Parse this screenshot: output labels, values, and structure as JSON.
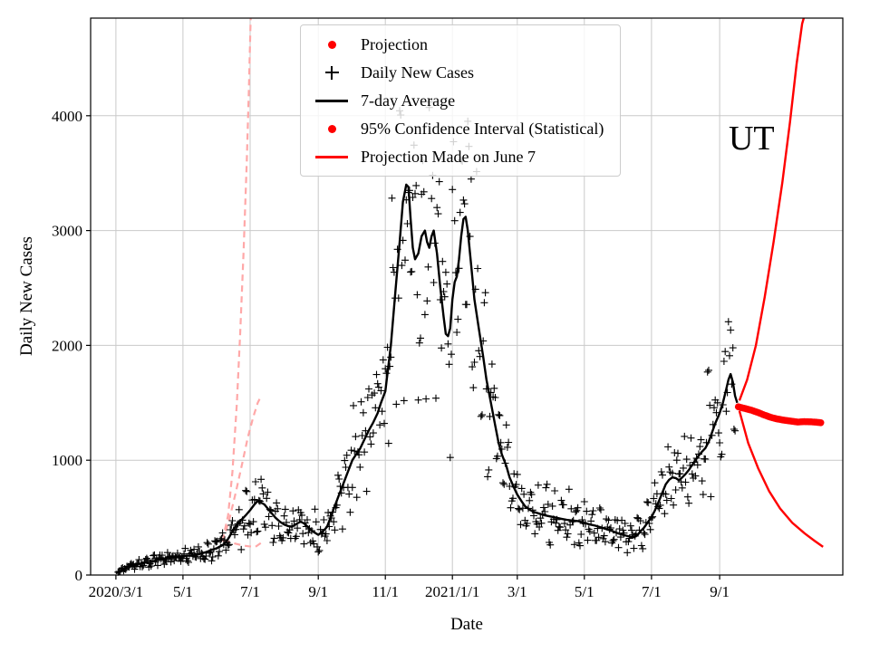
{
  "chart_data": {
    "type": "line+scatter",
    "x_unit": "days since 2020-03-01",
    "xlim": [
      -23,
      661
    ],
    "ylim": [
      0,
      4850
    ],
    "xlabel": "Date",
    "ylabel": "Daily New Cases",
    "grid": true,
    "xticks": [
      {
        "day": 0,
        "label": "2020/3/1"
      },
      {
        "day": 61,
        "label": "5/1"
      },
      {
        "day": 122,
        "label": "7/1"
      },
      {
        "day": 184,
        "label": "9/1"
      },
      {
        "day": 245,
        "label": "11/1"
      },
      {
        "day": 306,
        "label": "2021/1/1"
      },
      {
        "day": 365,
        "label": "3/1"
      },
      {
        "day": 426,
        "label": "5/1"
      },
      {
        "day": 487,
        "label": "7/1"
      },
      {
        "day": 549,
        "label": "9/1"
      }
    ],
    "yticks": [
      0,
      1000,
      2000,
      3000,
      4000
    ],
    "colors": {
      "cases": "#000000",
      "average": "#000000",
      "projection": "#ff0000",
      "past_projection": "#ffa8a8",
      "grid": "#c9c9c9"
    },
    "legend": {
      "position": "upper left",
      "items": [
        {
          "label": "Projection",
          "marker": "dot",
          "color": "#ff0000"
        },
        {
          "label": "Daily New Cases",
          "marker": "plus",
          "color": "#000000"
        },
        {
          "label": "7-day Average",
          "marker": "line",
          "color": "#000000"
        },
        {
          "label": "95% Confidence Interval (Statistical)",
          "marker": "dot",
          "color": "#ff0000"
        },
        {
          "label": "Projection Made on June 7",
          "marker": "line",
          "color": "#ff0000"
        }
      ]
    },
    "annotation": {
      "text": "UT",
      "day": 578,
      "value": 3800
    },
    "average": {
      "name": "7-day Average",
      "points": [
        [
          0,
          15
        ],
        [
          5,
          40
        ],
        [
          10,
          70
        ],
        [
          15,
          85
        ],
        [
          20,
          95
        ],
        [
          25,
          105
        ],
        [
          31,
          115
        ],
        [
          38,
          130
        ],
        [
          45,
          145
        ],
        [
          52,
          155
        ],
        [
          61,
          165
        ],
        [
          68,
          170
        ],
        [
          75,
          180
        ],
        [
          82,
          200
        ],
        [
          92,
          235
        ],
        [
          97,
          260
        ],
        [
          100,
          285
        ],
        [
          103,
          330
        ],
        [
          107,
          400
        ],
        [
          111,
          450
        ],
        [
          115,
          490
        ],
        [
          118,
          520
        ],
        [
          122,
          565
        ],
        [
          126,
          615
        ],
        [
          129,
          645
        ],
        [
          132,
          630
        ],
        [
          135,
          615
        ],
        [
          138,
          580
        ],
        [
          141,
          545
        ],
        [
          145,
          500
        ],
        [
          149,
          465
        ],
        [
          153,
          440
        ],
        [
          157,
          425
        ],
        [
          160,
          420
        ],
        [
          164,
          445
        ],
        [
          168,
          465
        ],
        [
          171,
          450
        ],
        [
          175,
          415
        ],
        [
          179,
          380
        ],
        [
          184,
          350
        ],
        [
          188,
          375
        ],
        [
          192,
          420
        ],
        [
          196,
          520
        ],
        [
          199,
          600
        ],
        [
          203,
          700
        ],
        [
          207,
          800
        ],
        [
          211,
          900
        ],
        [
          215,
          1000
        ],
        [
          219,
          1060
        ],
        [
          222,
          1100
        ],
        [
          226,
          1180
        ],
        [
          230,
          1260
        ],
        [
          234,
          1330
        ],
        [
          238,
          1410
        ],
        [
          241,
          1500
        ],
        [
          245,
          1600
        ],
        [
          250,
          2000
        ],
        [
          254,
          2450
        ],
        [
          258,
          2900
        ],
        [
          261,
          3250
        ],
        [
          264,
          3400
        ],
        [
          266,
          3380
        ],
        [
          268,
          3100
        ],
        [
          270,
          2850
        ],
        [
          272,
          2750
        ],
        [
          275,
          2800
        ],
        [
          278,
          2950
        ],
        [
          281,
          3000
        ],
        [
          283,
          2900
        ],
        [
          285,
          2850
        ],
        [
          287,
          2950
        ],
        [
          289,
          3000
        ],
        [
          292,
          2800
        ],
        [
          295,
          2500
        ],
        [
          298,
          2250
        ],
        [
          300,
          2100
        ],
        [
          302,
          2080
        ],
        [
          304,
          2150
        ],
        [
          306,
          2400
        ],
        [
          308,
          2550
        ],
        [
          310,
          2600
        ],
        [
          312,
          2750
        ],
        [
          314,
          2950
        ],
        [
          316,
          3100
        ],
        [
          318,
          3120
        ],
        [
          320,
          3000
        ],
        [
          323,
          2700
        ],
        [
          326,
          2400
        ],
        [
          330,
          2150
        ],
        [
          334,
          1900
        ],
        [
          337,
          1700
        ],
        [
          341,
          1500
        ],
        [
          345,
          1300
        ],
        [
          348,
          1150
        ],
        [
          351,
          1050
        ],
        [
          355,
          950
        ],
        [
          358,
          850
        ],
        [
          362,
          760
        ],
        [
          365,
          700
        ],
        [
          369,
          640
        ],
        [
          372,
          600
        ],
        [
          376,
          570
        ],
        [
          380,
          550
        ],
        [
          385,
          535
        ],
        [
          390,
          520
        ],
        [
          395,
          510
        ],
        [
          400,
          500
        ],
        [
          405,
          490
        ],
        [
          410,
          480
        ],
        [
          415,
          475
        ],
        [
          420,
          470
        ],
        [
          426,
          455
        ],
        [
          431,
          440
        ],
        [
          436,
          430
        ],
        [
          441,
          415
        ],
        [
          446,
          400
        ],
        [
          451,
          385
        ],
        [
          456,
          365
        ],
        [
          461,
          350
        ],
        [
          465,
          340
        ],
        [
          468,
          332
        ],
        [
          471,
          330
        ],
        [
          474,
          345
        ],
        [
          477,
          380
        ],
        [
          480,
          410
        ],
        [
          483,
          450
        ],
        [
          487,
          505
        ],
        [
          490,
          560
        ],
        [
          494,
          650
        ],
        [
          497,
          720
        ],
        [
          500,
          790
        ],
        [
          503,
          830
        ],
        [
          506,
          850
        ],
        [
          509,
          845
        ],
        [
          512,
          825
        ],
        [
          515,
          850
        ],
        [
          518,
          880
        ],
        [
          521,
          915
        ],
        [
          524,
          960
        ],
        [
          527,
          1000
        ],
        [
          530,
          1040
        ],
        [
          533,
          1075
        ],
        [
          536,
          1105
        ],
        [
          539,
          1160
        ],
        [
          542,
          1240
        ],
        [
          545,
          1320
        ],
        [
          549,
          1410
        ],
        [
          552,
          1500
        ],
        [
          555,
          1620
        ],
        [
          557,
          1700
        ],
        [
          559,
          1750
        ],
        [
          561,
          1680
        ],
        [
          563,
          1560
        ],
        [
          565,
          1500
        ]
      ]
    },
    "cases": {
      "name": "Daily New Cases",
      "marker": "plus",
      "day_range": [
        2,
        563
      ],
      "noise_frac": 0.22,
      "weekly_amplitude": 0.2,
      "clamp_max": 4120,
      "seed": 11,
      "note": "daily scatter estimated as jitter around 7-day average read from plot"
    },
    "projection": {
      "name": "Projection",
      "dot_radius": 3.8,
      "step_days": 1.5,
      "day_range": [
        566,
        641
      ],
      "points": [
        [
          566,
          1465
        ],
        [
          572,
          1450
        ],
        [
          578,
          1435
        ],
        [
          584,
          1415
        ],
        [
          590,
          1392
        ],
        [
          596,
          1372
        ],
        [
          602,
          1358
        ],
        [
          608,
          1348
        ],
        [
          614,
          1340
        ],
        [
          620,
          1332
        ],
        [
          626,
          1336
        ],
        [
          632,
          1334
        ],
        [
          638,
          1330
        ],
        [
          642,
          1325
        ]
      ]
    },
    "ci_statistical": {
      "name": "95% Confidence Interval (Statistical)",
      "upper": [
        [
          567,
          1520
        ],
        [
          574,
          1700
        ],
        [
          582,
          2000
        ],
        [
          590,
          2420
        ],
        [
          598,
          2900
        ],
        [
          606,
          3420
        ],
        [
          613,
          3950
        ],
        [
          619,
          4450
        ],
        [
          624,
          4800
        ],
        [
          625.5,
          4850
        ]
      ],
      "lower": [
        [
          567,
          1430
        ],
        [
          575,
          1150
        ],
        [
          584,
          930
        ],
        [
          594,
          730
        ],
        [
          604,
          580
        ],
        [
          615,
          455
        ],
        [
          626,
          365
        ],
        [
          635,
          300
        ],
        [
          643,
          245
        ]
      ]
    },
    "projection_june2020": {
      "name": "Projection Made on June 7",
      "curves": [
        [
          [
            97,
            300
          ],
          [
            102,
            520
          ],
          [
            106,
            900
          ],
          [
            110,
            1500
          ],
          [
            113,
            2100
          ],
          [
            116,
            2800
          ],
          [
            119,
            3600
          ],
          [
            121,
            4250
          ],
          [
            122.5,
            4850
          ]
        ],
        [
          [
            97,
            290
          ],
          [
            103,
            480
          ],
          [
            109,
            720
          ],
          [
            115,
            980
          ],
          [
            120,
            1200
          ],
          [
            125,
            1380
          ],
          [
            129,
            1500
          ],
          [
            132,
            1560
          ]
        ],
        [
          [
            98,
            300
          ],
          [
            103,
            290
          ],
          [
            109,
            272
          ],
          [
            115,
            258
          ],
          [
            121,
            250
          ],
          [
            127,
            246
          ],
          [
            132,
            280
          ]
        ]
      ]
    }
  }
}
